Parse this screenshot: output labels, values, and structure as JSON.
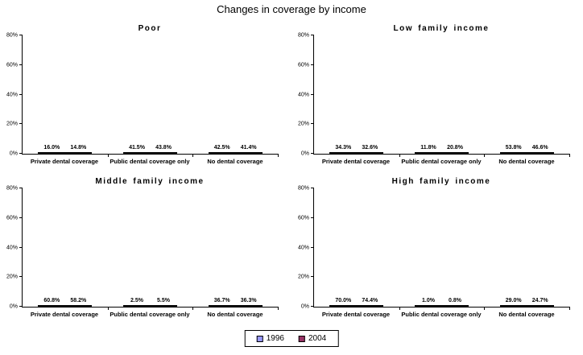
{
  "title": "Changes in coverage by income",
  "legend": {
    "items": [
      {
        "label": "1996",
        "color": "#9999FF"
      },
      {
        "label": "2004",
        "color": "#993366"
      }
    ]
  },
  "axis": {
    "ymin": 0,
    "ymax": 80,
    "yticks": [
      "0%",
      "20%",
      "40%",
      "60%",
      "80%"
    ]
  },
  "chart_data": [
    {
      "type": "bar",
      "title": "Poor",
      "categories": [
        "Private dental coverage",
        "Public dental coverage only",
        "No dental coverage"
      ],
      "series": [
        {
          "name": "1996",
          "values": [
            16.0,
            41.5,
            42.5
          ]
        },
        {
          "name": "2004",
          "values": [
            14.8,
            43.8,
            41.4
          ]
        }
      ],
      "ylim": [
        0,
        80
      ],
      "yticks": [
        "0%",
        "20%",
        "40%",
        "60%",
        "80%"
      ],
      "grid": false,
      "data_labels": true
    },
    {
      "type": "bar",
      "title": "Low family income",
      "categories": [
        "Private dental coverage",
        "Public dental coverage only",
        "No dental coverage"
      ],
      "series": [
        {
          "name": "1996",
          "values": [
            34.3,
            11.8,
            53.8
          ]
        },
        {
          "name": "2004",
          "values": [
            32.6,
            20.8,
            46.6
          ]
        }
      ],
      "ylim": [
        0,
        80
      ],
      "yticks": [
        "0%",
        "20%",
        "40%",
        "60%",
        "80%"
      ],
      "grid": false,
      "data_labels": true
    },
    {
      "type": "bar",
      "title": "Middle family income",
      "categories": [
        "Private dental coverage",
        "Public dental coverage only",
        "No dental coverage"
      ],
      "series": [
        {
          "name": "1996",
          "values": [
            60.8,
            2.5,
            36.7
          ]
        },
        {
          "name": "2004",
          "values": [
            58.2,
            5.5,
            36.3
          ]
        }
      ],
      "ylim": [
        0,
        80
      ],
      "yticks": [
        "0%",
        "20%",
        "40%",
        "60%",
        "80%"
      ],
      "grid": false,
      "data_labels": true
    },
    {
      "type": "bar",
      "title": "High family income",
      "categories": [
        "Private dental coverage",
        "Public dental coverage only",
        "No dental coverage"
      ],
      "series": [
        {
          "name": "1996",
          "values": [
            70.0,
            1.0,
            29.0
          ]
        },
        {
          "name": "2004",
          "values": [
            74.4,
            0.8,
            24.7
          ]
        }
      ],
      "ylim": [
        0,
        80
      ],
      "yticks": [
        "0%",
        "20%",
        "40%",
        "60%",
        "80%"
      ],
      "grid": false,
      "data_labels": true
    }
  ]
}
